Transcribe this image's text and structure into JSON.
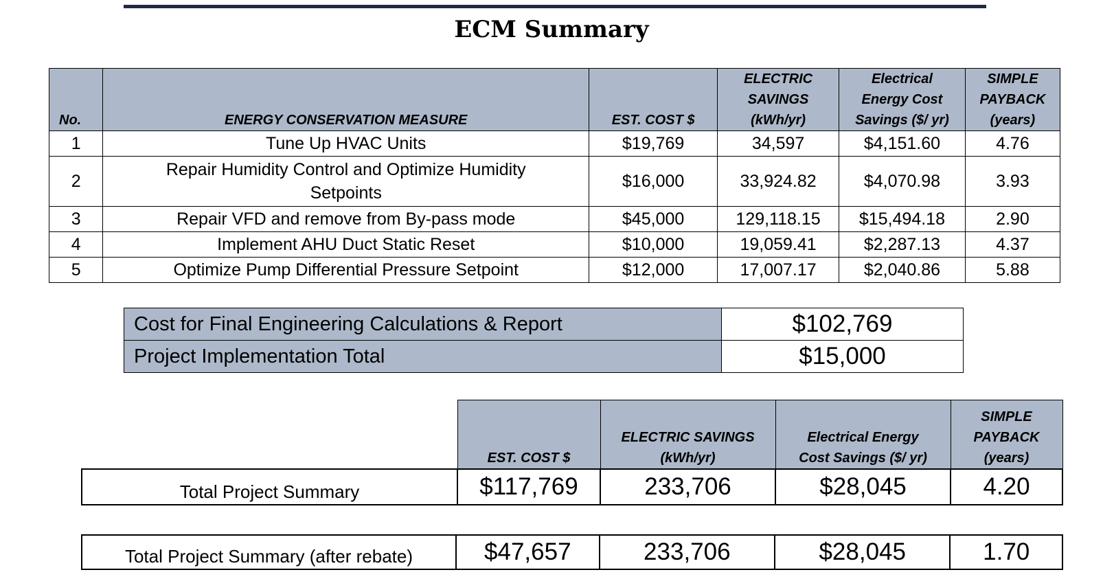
{
  "title": "ECM Summary",
  "colors": {
    "header_fill": "#adb9ca",
    "rule": "#1f2a44"
  },
  "ecm_table": {
    "headers": {
      "no": "No.",
      "measure": "ENERGY CONSERVATION MEASURE",
      "cost": "EST. COST $",
      "kwh_line1": "ELECTRIC",
      "kwh_line2": "SAVINGS",
      "kwh_line3": "(kWh/yr)",
      "sav_line1": "Electrical",
      "sav_line2": "Energy Cost",
      "sav_line3": "Savings ($/ yr)",
      "pb_line1": "SIMPLE",
      "pb_line2": "PAYBACK",
      "pb_line3": "(years)"
    },
    "rows": [
      {
        "no": "1",
        "measure": "Tune Up HVAC Units",
        "measure2": "",
        "cost": "$19,769",
        "kwh": "34,597",
        "savings": "$4,151.60",
        "payback": "4.76"
      },
      {
        "no": "2",
        "measure": "Repair Humidity Control and Optimize Humidity",
        "measure2": "Setpoints",
        "cost": "$16,000",
        "kwh": "33,924.82",
        "savings": "$4,070.98",
        "payback": "3.93"
      },
      {
        "no": "3",
        "measure": "Repair VFD and remove from By-pass mode",
        "measure2": "",
        "cost": "$45,000",
        "kwh": "129,118.15",
        "savings": "$15,494.18",
        "payback": "2.90"
      },
      {
        "no": "4",
        "measure": "Implement AHU Duct Static Reset",
        "measure2": "",
        "cost": "$10,000",
        "kwh": "19,059.41",
        "savings": "$2,287.13",
        "payback": "4.37"
      },
      {
        "no": "5",
        "measure": "Optimize Pump Differential Pressure Setpoint",
        "measure2": "",
        "cost": "$12,000",
        "kwh": "17,007.17",
        "savings": "$2,040.86",
        "payback": "5.88"
      }
    ]
  },
  "costs": [
    {
      "label": "Cost for Final Engineering Calculations & Report",
      "value": "$102,769"
    },
    {
      "label": "Project Implementation Total",
      "value": "$15,000"
    }
  ],
  "summary": {
    "headers": {
      "cost": "EST. COST $",
      "kwh_line1": "ELECTRIC SAVINGS",
      "kwh_line2": "(kWh/yr)",
      "sav_line1": "Electrical Energy",
      "sav_line2": "Cost Savings ($/ yr)",
      "pb_line1": "SIMPLE",
      "pb_line2": "PAYBACK",
      "pb_line3": "(years)"
    },
    "total": {
      "label": "Total Project Summary",
      "cost": "$117,769",
      "kwh": "233,706",
      "savings": "$28,045",
      "payback": "4.20"
    },
    "after_rebate": {
      "label": "Total Project Summary (after rebate)",
      "cost": "$47,657",
      "kwh": "233,706",
      "savings": "$28,045",
      "payback": "1.70"
    }
  }
}
